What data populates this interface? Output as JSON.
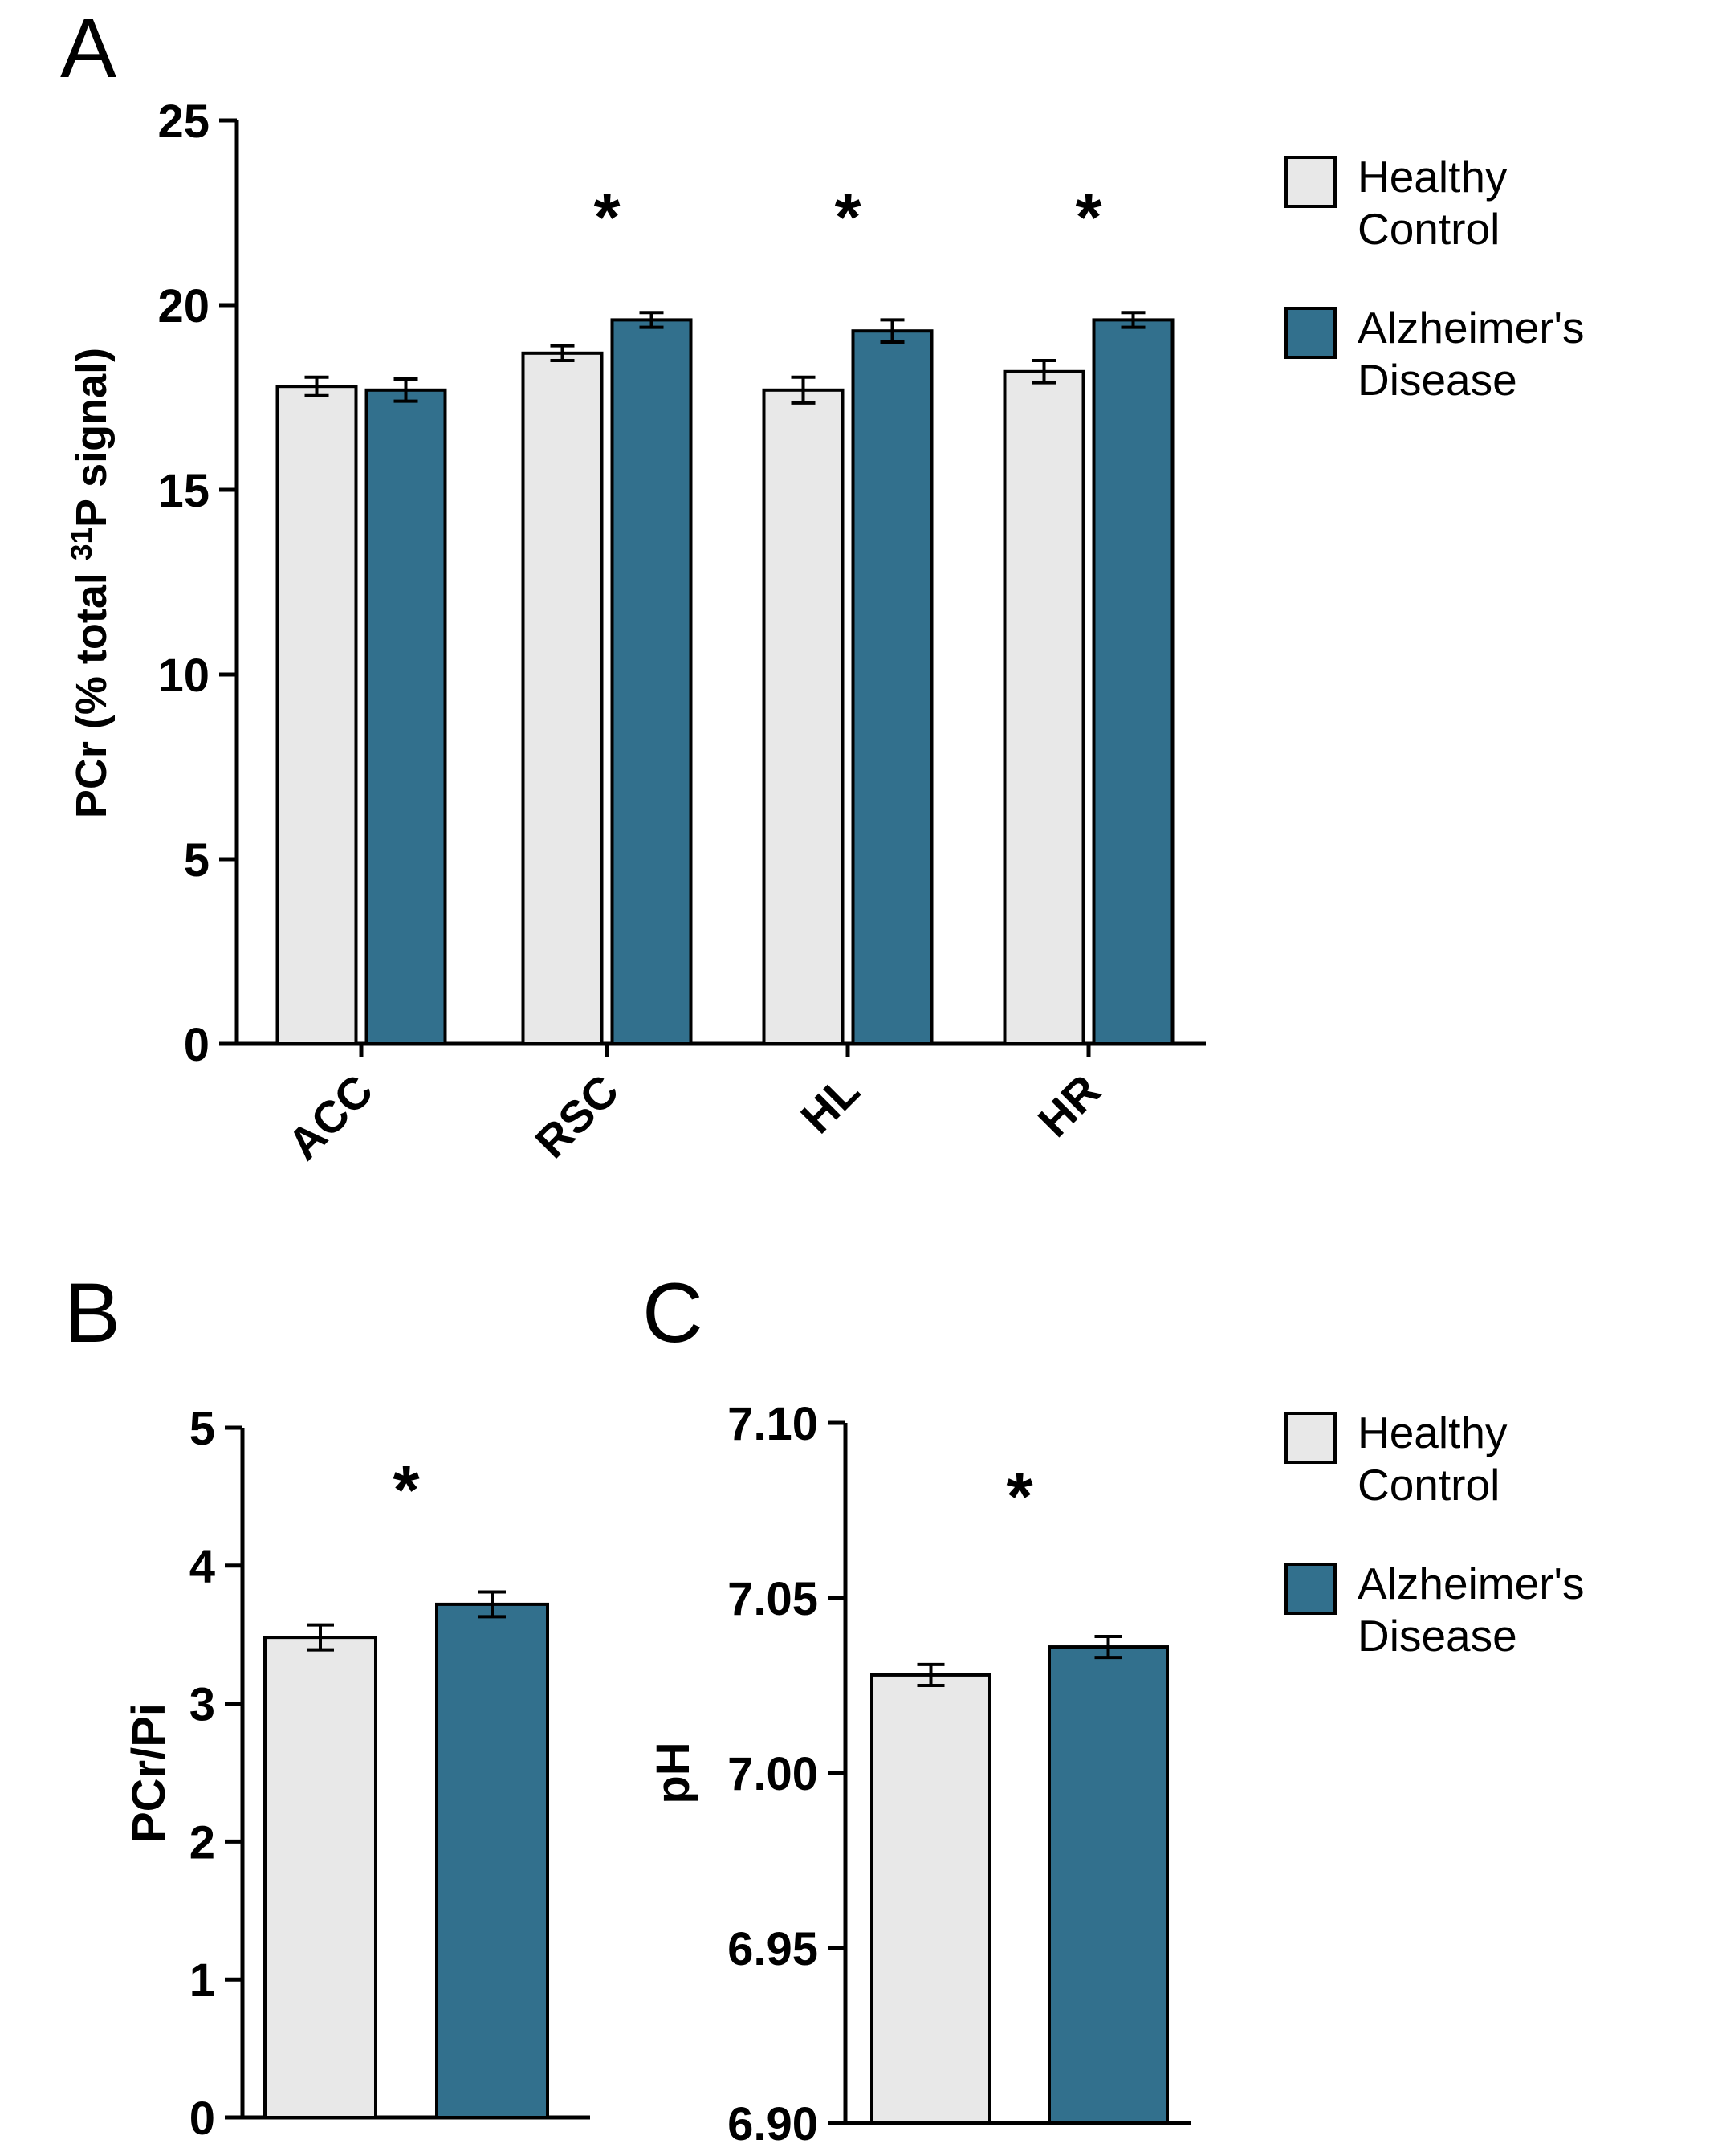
{
  "panels": {
    "a": {
      "letter": "A"
    },
    "b": {
      "letter": "B"
    },
    "c": {
      "letter": "C"
    }
  },
  "legend": {
    "healthy": "Healthy Control",
    "alzheimers": "Alzheimer's Disease"
  },
  "colors": {
    "healthy_fill": "#e8e8e8",
    "alzheimers_fill": "#32708d",
    "stroke": "#000000"
  },
  "chart_data": [
    {
      "panel": "A",
      "type": "bar",
      "categories": [
        "ACC",
        "RSC",
        "HL",
        "HR"
      ],
      "series": [
        {
          "name": "Healthy Control",
          "values": [
            17.8,
            18.7,
            17.7,
            18.2
          ],
          "errors": [
            0.25,
            0.2,
            0.35,
            0.3
          ]
        },
        {
          "name": "Alzheimer's Disease",
          "values": [
            17.7,
            19.6,
            19.3,
            19.6
          ],
          "errors": [
            0.3,
            0.2,
            0.3,
            0.2
          ]
        }
      ],
      "significance": [
        false,
        true,
        true,
        true
      ],
      "ylabel_parts": {
        "pre": "PCr (% total ",
        "sup": "31",
        "post": "P signal)"
      },
      "ylim": [
        0,
        25
      ],
      "yticks": [
        0,
        5,
        10,
        15,
        20,
        25
      ],
      "ytick_labels": [
        "0",
        "5",
        "10",
        "15",
        "20",
        "25"
      ],
      "legend_position": "right",
      "grid": false
    },
    {
      "panel": "B",
      "type": "bar",
      "categories": [
        ""
      ],
      "series": [
        {
          "name": "Healthy Control",
          "values": [
            3.48
          ],
          "errors": [
            0.09
          ]
        },
        {
          "name": "Alzheimer's Disease",
          "values": [
            3.72
          ],
          "errors": [
            0.09
          ]
        }
      ],
      "significance": [
        true
      ],
      "ylabel": "PCr/Pi",
      "ylim": [
        0,
        5
      ],
      "yticks": [
        0,
        1,
        2,
        3,
        4,
        5
      ],
      "ytick_labels": [
        "0",
        "1",
        "2",
        "3",
        "4",
        "5"
      ],
      "grid": false
    },
    {
      "panel": "C",
      "type": "bar",
      "categories": [
        ""
      ],
      "series": [
        {
          "name": "Healthy Control",
          "values": [
            7.028
          ],
          "errors": [
            0.003
          ]
        },
        {
          "name": "Alzheimer's Disease",
          "values": [
            7.036
          ],
          "errors": [
            0.003
          ]
        }
      ],
      "significance": [
        true
      ],
      "ylabel": "pH",
      "ylim": [
        6.9,
        7.1
      ],
      "yticks": [
        6.9,
        6.95,
        7.0,
        7.05,
        7.1
      ],
      "ytick_labels": [
        "6.90",
        "6.95",
        "7.00",
        "7.05",
        "7.10"
      ],
      "legend_position": "right",
      "grid": false
    }
  ]
}
